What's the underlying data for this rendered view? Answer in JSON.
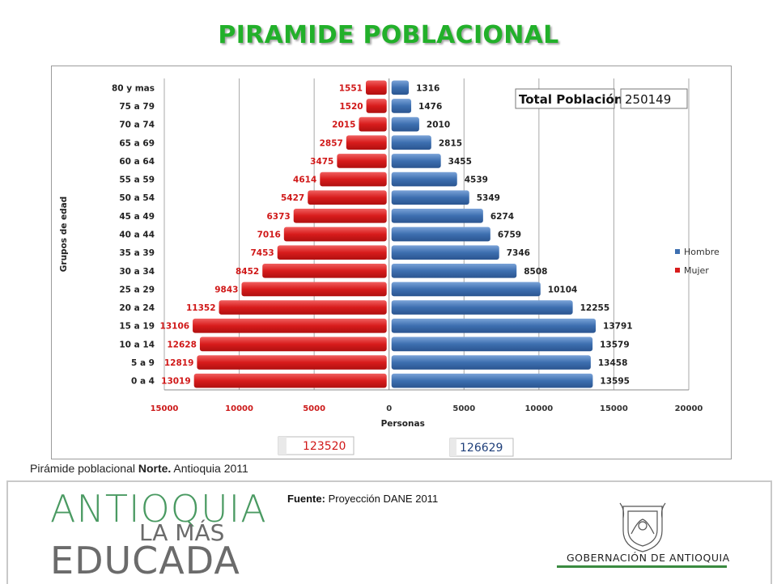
{
  "slide": {
    "title": "PIRAMIDE POBLACIONAL",
    "caption_prefix": "Pirámide poblacional ",
    "caption_bold": "Norte.",
    "caption_suffix": " Antioquia 2011",
    "source_label": "Fuente:",
    "source_text": " Proyección DANE 2011",
    "logo_line1": "ANTIOQUIA",
    "logo_line2": "LA MÁS",
    "logo_line3": "EDUCADA",
    "gov_name": "GOBERNACIÓN DE ANTIOQUIA",
    "colors": {
      "title": "#22b02a",
      "hombre": "#3d6fb0",
      "mujer": "#d81c1c",
      "brand_green": "#4a9a62"
    }
  },
  "chart_data": {
    "type": "bar",
    "orientation": "horizontal-diverging",
    "categories": [
      "80 y mas",
      "75 a 79",
      "70 a 74",
      "65 a 69",
      "60 a 64",
      "55 a 59",
      "50 a 54",
      "45 a 49",
      "40 a 44",
      "35 a 39",
      "30 a 34",
      "25 a 29",
      "20 a 24",
      "15 a 19",
      "10 a 14",
      "5 a 9",
      "0 a 4"
    ],
    "series": [
      {
        "name": "Hombre",
        "color": "#3d6fb0",
        "values": [
          1316,
          1476,
          2010,
          2815,
          3455,
          4539,
          5349,
          6274,
          6759,
          7346,
          8508,
          10104,
          12255,
          13791,
          13579,
          13458,
          13595
        ]
      },
      {
        "name": "Mujer",
        "color": "#d81c1c",
        "values": [
          1551,
          1520,
          2015,
          2857,
          3475,
          4614,
          5427,
          6373,
          7016,
          7453,
          8452,
          9843,
          11352,
          13106,
          12628,
          12819,
          13019
        ]
      }
    ],
    "x_ticks": [
      "15000",
      "10000",
      "5000",
      "0",
      "5000",
      "10000",
      "15000",
      "20000"
    ],
    "xlim": [
      -15000,
      20000
    ],
    "xlabel": "Personas",
    "ylabel": "Grupos de edad",
    "grid": true,
    "legend_position": "right",
    "total_label": "Total Población:",
    "total_value": "250149",
    "total_mujer": "123520",
    "total_hombre": "126629"
  }
}
